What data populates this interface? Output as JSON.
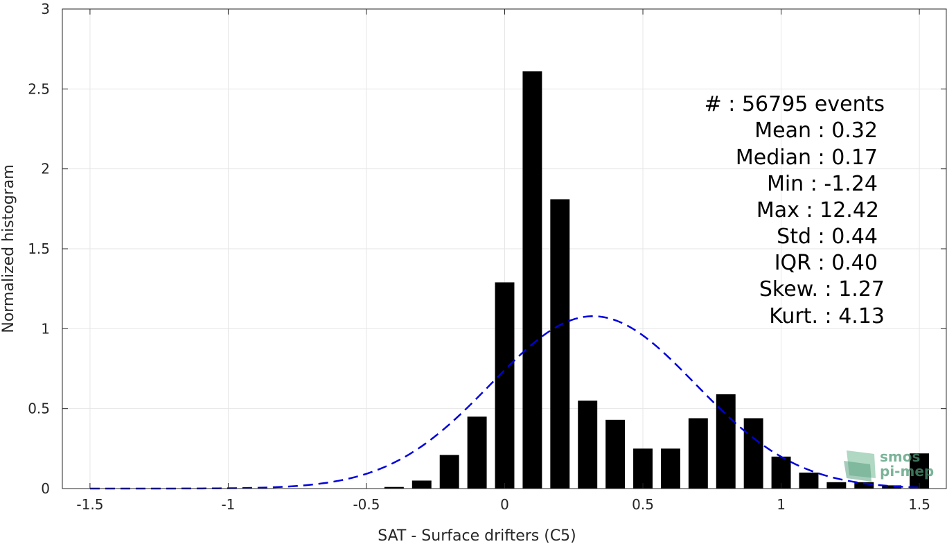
{
  "chart_data": {
    "type": "bar",
    "xlabel": "SAT - Surface drifters (C5)",
    "ylabel": "Normalized histogram",
    "xlim": [
      -1.6,
      1.6
    ],
    "ylim": [
      0,
      3
    ],
    "xticks": [
      -1.5,
      -1,
      -0.5,
      0,
      0.5,
      1,
      1.5
    ],
    "xtick_labels": [
      "-1.5",
      "-1",
      "-0.5",
      "0",
      "0.5",
      "1",
      "1.5"
    ],
    "yticks": [
      0,
      0.5,
      1,
      1.5,
      2,
      2.5,
      3
    ],
    "ytick_labels": [
      "0",
      "0.5",
      "1",
      "1.5",
      "2",
      "2.5",
      "3"
    ],
    "grid": true,
    "bar_width": 0.07,
    "bar_color": "#000000",
    "bars": {
      "x": [
        -0.4,
        -0.3,
        -0.2,
        -0.1,
        0.0,
        0.1,
        0.2,
        0.3,
        0.4,
        0.5,
        0.6,
        0.7,
        0.8,
        0.9,
        1.0,
        1.1,
        1.2,
        1.3,
        1.4,
        1.5
      ],
      "values": [
        0.01,
        0.05,
        0.21,
        0.45,
        1.29,
        2.61,
        1.81,
        0.55,
        0.43,
        0.25,
        0.25,
        0.44,
        0.59,
        0.44,
        0.2,
        0.1,
        0.04,
        0.04,
        0.02,
        0.22
      ]
    },
    "fit_curve": {
      "style": "dashed",
      "color": "#0000dd",
      "mean": 0.32,
      "std": 0.37,
      "x_range": [
        -1.5,
        1.5
      ]
    },
    "stats_box": [
      "#  : 56795 events",
      "Mean : 0.32",
      "Median : 0.17",
      "Min : -1.24",
      "Max : 12.42",
      "Std : 0.44",
      "IQR : 0.40",
      "Skew. : 1.27",
      "Kurt. : 4.13"
    ],
    "watermark": [
      "smos",
      "pi-mep"
    ]
  }
}
